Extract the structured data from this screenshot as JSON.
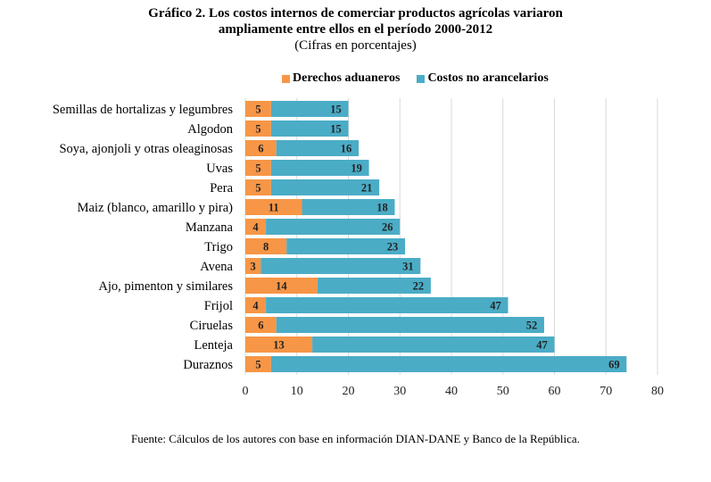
{
  "chart_data": {
    "type": "bar",
    "orientation": "horizontal",
    "stacked": true,
    "title": "Gráfico 2. Los costos internos de comerciar productos agrícolas variaron ampliamente entre ellos en el período 2000-2012",
    "title_lines": [
      "Gráfico 2. Los costos internos de comerciar productos agrícolas variaron",
      "ampliamente entre ellos en el período 2000-2012"
    ],
    "subtitle": "(Cifras en porcentajes)",
    "xlabel": "",
    "ylabel": "",
    "xlim": [
      0,
      80
    ],
    "xticks": [
      0,
      10,
      20,
      30,
      40,
      50,
      60,
      70,
      80
    ],
    "grid": true,
    "legend_position": "top",
    "categories": [
      "Semillas de hortalizas y legumbres",
      "Algodon",
      "Soya, ajonjoli y otras oleaginosas",
      "Uvas",
      "Pera",
      "Maiz (blanco, amarillo y pira)",
      "Manzana",
      "Trigo",
      "Avena",
      "Ajo, pimenton y similares",
      "Frijol",
      "Ciruelas",
      "Lenteja",
      "Duraznos"
    ],
    "series": [
      {
        "name": "Derechos aduaneros",
        "color": "#F79646",
        "values": [
          5,
          5,
          6,
          5,
          5,
          11,
          4,
          8,
          3,
          14,
          4,
          6,
          13,
          5
        ]
      },
      {
        "name": "Costos no arancelarios",
        "color": "#4BACC6",
        "values": [
          15,
          15,
          16,
          19,
          21,
          18,
          26,
          23,
          31,
          22,
          47,
          52,
          47,
          69
        ]
      }
    ],
    "source": "Fuente: Cálculos de los autores con base en información DIAN-DANE y Banco de la República."
  }
}
